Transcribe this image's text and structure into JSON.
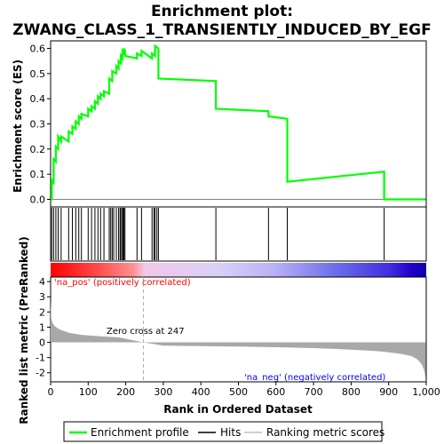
{
  "chart_data": {
    "type": "line",
    "title_line1": "Enrichment plot:",
    "title_line2": "ZWANG_CLASS_1_TRANSIENTLY_INDUCED_BY_EGF",
    "top_panel": {
      "ylabel": "Enrichment score (ES)",
      "ylim": [
        -0.03,
        0.63
      ],
      "yticks": [
        "0.0",
        "0.1",
        "0.2",
        "0.3",
        "0.4",
        "0.5",
        "0.6"
      ],
      "series": [
        {
          "name": "Enrichment profile",
          "color": "#00ff00",
          "x": [
            0,
            3,
            3,
            8,
            8,
            14,
            14,
            20,
            20,
            28,
            28,
            48,
            48,
            58,
            58,
            67,
            67,
            75,
            75,
            82,
            82,
            100,
            100,
            109,
            109,
            118,
            118,
            126,
            126,
            133,
            133,
            142,
            142,
            156,
            156,
            164,
            164,
            175,
            175,
            181,
            181,
            187,
            187,
            191,
            191,
            195,
            195,
            198,
            198,
            230,
            230,
            242,
            242,
            270,
            270,
            278,
            278,
            287,
            287,
            440,
            440,
            580,
            580,
            630,
            630,
            888,
            888,
            998
          ],
          "y": [
            0.0,
            0.0,
            0.08,
            0.06,
            0.16,
            0.15,
            0.21,
            0.2,
            0.25,
            0.23,
            0.25,
            0.23,
            0.27,
            0.26,
            0.29,
            0.28,
            0.31,
            0.3,
            0.33,
            0.32,
            0.34,
            0.33,
            0.36,
            0.35,
            0.37,
            0.36,
            0.39,
            0.38,
            0.41,
            0.4,
            0.42,
            0.41,
            0.43,
            0.42,
            0.48,
            0.47,
            0.51,
            0.5,
            0.53,
            0.52,
            0.55,
            0.54,
            0.57,
            0.56,
            0.59,
            0.58,
            0.6,
            0.59,
            0.57,
            0.56,
            0.58,
            0.57,
            0.59,
            0.56,
            0.58,
            0.57,
            0.61,
            0.6,
            0.48,
            0.47,
            0.36,
            0.35,
            0.33,
            0.32,
            0.07,
            0.11,
            0.0,
            0.0
          ]
        }
      ]
    },
    "hits": [
      3,
      8,
      14,
      20,
      28,
      48,
      58,
      67,
      75,
      82,
      100,
      109,
      118,
      126,
      133,
      142,
      156,
      160,
      164,
      168,
      175,
      181,
      185,
      187,
      191,
      193,
      195,
      198,
      230,
      242,
      270,
      275,
      278,
      283,
      287,
      440,
      580,
      630,
      888
    ],
    "heat_bar_labels": {
      "pos": "'na_pos' (positively correlated)",
      "neg": "'na_neg' (negatively correlated)"
    },
    "bottom_panel": {
      "ylabel": "Ranked list metric (PreRanked)",
      "ylim": [
        -2.6,
        4.3
      ],
      "yticks": [
        "4",
        "3",
        "2",
        "1",
        "0",
        "-1",
        "-2"
      ],
      "zero_cross_label": "Zero cross at 247",
      "zero_cross": 247,
      "metric_curve": {
        "x": [
          0,
          2,
          5,
          10,
          20,
          35,
          50,
          80,
          120,
          180,
          247,
          300,
          400,
          500,
          600,
          700,
          800,
          880,
          930,
          960,
          975,
          985,
          990,
          995,
          999
        ],
        "y": [
          2.8,
          1.6,
          1.3,
          1.1,
          0.9,
          0.75,
          0.62,
          0.5,
          0.42,
          0.33,
          0.0,
          -0.22,
          -0.25,
          -0.28,
          -0.32,
          -0.38,
          -0.48,
          -0.6,
          -0.75,
          -0.9,
          -1.1,
          -1.35,
          -1.55,
          -1.9,
          -2.45
        ]
      }
    },
    "xlabel": "Rank in Ordered Dataset",
    "xticks": [
      "0",
      "100",
      "200",
      "300",
      "400",
      "500",
      "600",
      "700",
      "800",
      "900",
      "1,000"
    ],
    "xlim": [
      0,
      1000
    ],
    "legend": [
      {
        "label": "Enrichment profile",
        "color": "#00ff00"
      },
      {
        "label": "Hits",
        "color": "#000000"
      },
      {
        "label": "Ranking metric scores",
        "color": "#c0c0c0"
      }
    ]
  }
}
